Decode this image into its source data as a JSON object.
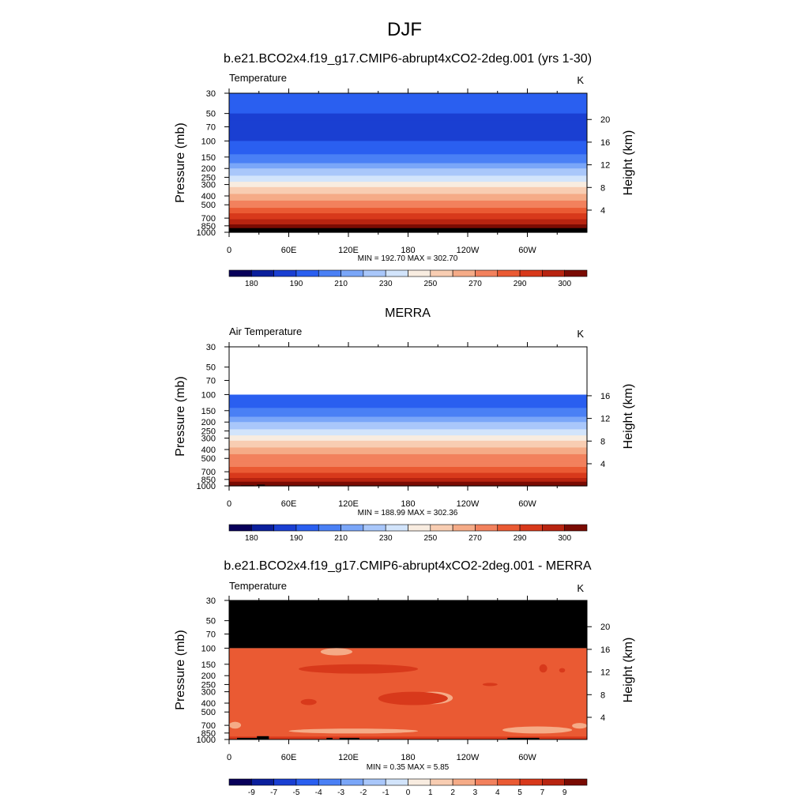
{
  "figure_title": "DJF",
  "chart_data": [
    {
      "type": "heatmap",
      "title": "b.e21.BCO2x4.f19_g17.CMIP6-abrupt4xCO2-2deg.001 (yrs 1-30)",
      "left_label": "Temperature",
      "units_label": "K",
      "ylabel": "Pressure (mb)",
      "ylabel_right": "Height (km)",
      "x_ticks": [
        "0",
        "60E",
        "120E",
        "180",
        "120W",
        "60W"
      ],
      "x_tick_lons": [
        0,
        60,
        120,
        180,
        240,
        300
      ],
      "xlim": [
        0,
        360
      ],
      "pressure_ticks": [
        "30",
        "50",
        "70",
        "100",
        "150",
        "200",
        "250",
        "300",
        "400",
        "500",
        "700",
        "850",
        "1000"
      ],
      "pressure_values": [
        30,
        50,
        70,
        100,
        150,
        200,
        250,
        300,
        400,
        500,
        700,
        850,
        1000
      ],
      "ylim_mb": [
        1000,
        30
      ],
      "height_ticks": [
        "4",
        "8",
        "12",
        "16",
        "20"
      ],
      "height_values": [
        4,
        8,
        12,
        16,
        20
      ],
      "stats_text": "MIN = 192.70  MAX = 302.70",
      "min": 192.7,
      "max": 302.7,
      "data_top_mb": 30,
      "level_field": {
        "p": [
          30,
          50,
          60,
          100,
          140,
          175,
          200,
          240,
          280,
          320,
          380,
          450,
          540,
          620,
          720,
          820,
          900,
          980
        ],
        "bin": [
          3,
          2,
          2,
          3,
          4,
          5,
          6,
          7,
          8,
          9,
          10,
          11,
          12,
          13,
          14,
          15,
          16,
          16
        ]
      },
      "topography": [
        {
          "lon0": 8,
          "lon1": 30,
          "p_top": 960
        },
        {
          "lon0": 28,
          "lon1": 40,
          "p_top": 920
        },
        {
          "lon0": 98,
          "lon1": 104,
          "p_top": 960
        },
        {
          "lon0": 111,
          "lon1": 131,
          "p_top": 960
        },
        {
          "lon0": 280,
          "lon1": 312,
          "p_top": 960
        }
      ],
      "colorbar": {
        "labels": [
          "180",
          "190",
          "210",
          "230",
          "250",
          "270",
          "290",
          "300"
        ],
        "label_boxes": [
          1,
          3,
          5,
          7,
          9,
          11,
          13,
          15
        ],
        "colors": [
          "#08005a",
          "#0b1f9c",
          "#1a3fd2",
          "#2a5ff0",
          "#4a80f5",
          "#7aa6f8",
          "#a9c7fa",
          "#d2e4fb",
          "#f8ece0",
          "#f8cdb2",
          "#f5ab87",
          "#f2815d",
          "#ea5a33",
          "#d8391b",
          "#b82410",
          "#7a0b03"
        ]
      }
    },
    {
      "type": "heatmap",
      "title": "MERRA",
      "left_label": "Air Temperature",
      "units_label": "K",
      "ylabel": "Pressure (mb)",
      "ylabel_right": "Height (km)",
      "x_ticks": [
        "0",
        "60E",
        "120E",
        "180",
        "120W",
        "60W"
      ],
      "x_tick_lons": [
        0,
        60,
        120,
        180,
        240,
        300
      ],
      "xlim": [
        0,
        360
      ],
      "pressure_ticks": [
        "30",
        "50",
        "70",
        "100",
        "150",
        "200",
        "250",
        "300",
        "400",
        "500",
        "700",
        "850",
        "1000"
      ],
      "pressure_values": [
        30,
        50,
        70,
        100,
        150,
        200,
        250,
        300,
        400,
        500,
        700,
        850,
        1000
      ],
      "ylim_mb": [
        1000,
        30
      ],
      "height_ticks": [
        "4",
        "8",
        "12",
        "16"
      ],
      "height_values": [
        4,
        8,
        12,
        16
      ],
      "stats_text": "MIN = 188.99  MAX = 302.36",
      "min": 188.99,
      "max": 302.36,
      "data_top_mb": 100,
      "level_field": {
        "p": [
          100,
          140,
          175,
          200,
          240,
          280,
          320,
          380,
          450,
          540,
          620,
          720,
          820,
          900,
          980
        ],
        "bin": [
          3,
          4,
          5,
          6,
          7,
          8,
          9,
          10,
          11,
          11,
          12,
          13,
          14,
          15,
          15
        ]
      },
      "topography": [
        {
          "lon0": 12,
          "lon1": 25,
          "p_top": 985
        },
        {
          "lon0": 28,
          "lon1": 36,
          "p_top": 970
        }
      ],
      "colorbar": {
        "labels": [
          "180",
          "190",
          "210",
          "230",
          "250",
          "270",
          "290",
          "300"
        ],
        "label_boxes": [
          1,
          3,
          5,
          7,
          9,
          11,
          13,
          15
        ],
        "colors": [
          "#08005a",
          "#0b1f9c",
          "#1a3fd2",
          "#2a5ff0",
          "#4a80f5",
          "#7aa6f8",
          "#a9c7fa",
          "#d2e4fb",
          "#f8ece0",
          "#f8cdb2",
          "#f5ab87",
          "#f2815d",
          "#ea5a33",
          "#d8391b",
          "#b82410",
          "#7a0b03"
        ]
      }
    },
    {
      "type": "heatmap",
      "title": "b.e21.BCO2x4.f19_g17.CMIP6-abrupt4xCO2-2deg.001 - MERRA",
      "left_label": "Temperature",
      "units_label": "K",
      "ylabel": "Pressure (mb)",
      "ylabel_right": "Height (km)",
      "x_ticks": [
        "0",
        "60E",
        "120E",
        "180",
        "120W",
        "60W"
      ],
      "x_tick_lons": [
        0,
        60,
        120,
        180,
        240,
        300
      ],
      "xlim": [
        0,
        360
      ],
      "pressure_ticks": [
        "30",
        "50",
        "70",
        "100",
        "150",
        "200",
        "250",
        "300",
        "400",
        "500",
        "700",
        "850",
        "1000"
      ],
      "pressure_values": [
        30,
        50,
        70,
        100,
        150,
        200,
        250,
        300,
        400,
        500,
        700,
        850,
        1000
      ],
      "ylim_mb": [
        1000,
        30
      ],
      "height_ticks": [
        "4",
        "8",
        "12",
        "16",
        "20"
      ],
      "height_values": [
        4,
        8,
        12,
        16,
        20
      ],
      "stats_text": "MIN =   0.35  MAX =   5.85",
      "min": 0.35,
      "max": 5.85,
      "missing_above_mb": 100,
      "base_bin": 12,
      "warm_patches_bin": 13,
      "warm_patches": [
        {
          "lon0": 70,
          "lon1": 190,
          "p0": 150,
          "p1": 190
        },
        {
          "lon0": 150,
          "lon1": 220,
          "p0": 300,
          "p1": 420
        },
        {
          "lon0": 72,
          "lon1": 88,
          "p0": 360,
          "p1": 420
        },
        {
          "lon0": 255,
          "lon1": 270,
          "p0": 240,
          "p1": 260
        },
        {
          "lon0": 312,
          "lon1": 320,
          "p0": 150,
          "p1": 185
        },
        {
          "lon0": 332,
          "lon1": 338,
          "p0": 165,
          "p1": 185
        },
        {
          "lon0": 0,
          "lon1": 360,
          "p0": 930,
          "p1": 1000
        }
      ],
      "cool_patches_bin": 10,
      "cool_patches": [
        {
          "lon0": 92,
          "lon1": 124,
          "p0": 100,
          "p1": 120
        },
        {
          "lon0": 185,
          "lon1": 225,
          "p0": 300,
          "p1": 410
        },
        {
          "lon0": 60,
          "lon1": 190,
          "p0": 760,
          "p1": 860
        },
        {
          "lon0": 275,
          "lon1": 345,
          "p0": 720,
          "p1": 860
        },
        {
          "lon0": 0,
          "lon1": 12,
          "p0": 640,
          "p1": 760
        },
        {
          "lon0": 345,
          "lon1": 360,
          "p0": 660,
          "p1": 760
        }
      ],
      "topography": [
        {
          "lon0": 8,
          "lon1": 30,
          "p_top": 960
        },
        {
          "lon0": 28,
          "lon1": 40,
          "p_top": 920
        },
        {
          "lon0": 98,
          "lon1": 104,
          "p_top": 960
        },
        {
          "lon0": 111,
          "lon1": 131,
          "p_top": 960
        },
        {
          "lon0": 280,
          "lon1": 312,
          "p_top": 960
        }
      ],
      "colorbar": {
        "labels": [
          "-9",
          "-7",
          "-5",
          "-4",
          "-3",
          "-2",
          "-1",
          "0",
          "1",
          "2",
          "3",
          "4",
          "5",
          "7",
          "9"
        ],
        "label_boxes": [
          1,
          2,
          3,
          4,
          5,
          6,
          7,
          8,
          9,
          10,
          11,
          12,
          13,
          14,
          15
        ],
        "colors": [
          "#08005a",
          "#0b1f9c",
          "#1a3fd2",
          "#2a5ff0",
          "#4a80f5",
          "#7aa6f8",
          "#a9c7fa",
          "#d2e4fb",
          "#f8ece0",
          "#f8cdb2",
          "#f5ab87",
          "#f2815d",
          "#ea5a33",
          "#d8391b",
          "#b82410",
          "#7a0b03"
        ]
      }
    }
  ]
}
